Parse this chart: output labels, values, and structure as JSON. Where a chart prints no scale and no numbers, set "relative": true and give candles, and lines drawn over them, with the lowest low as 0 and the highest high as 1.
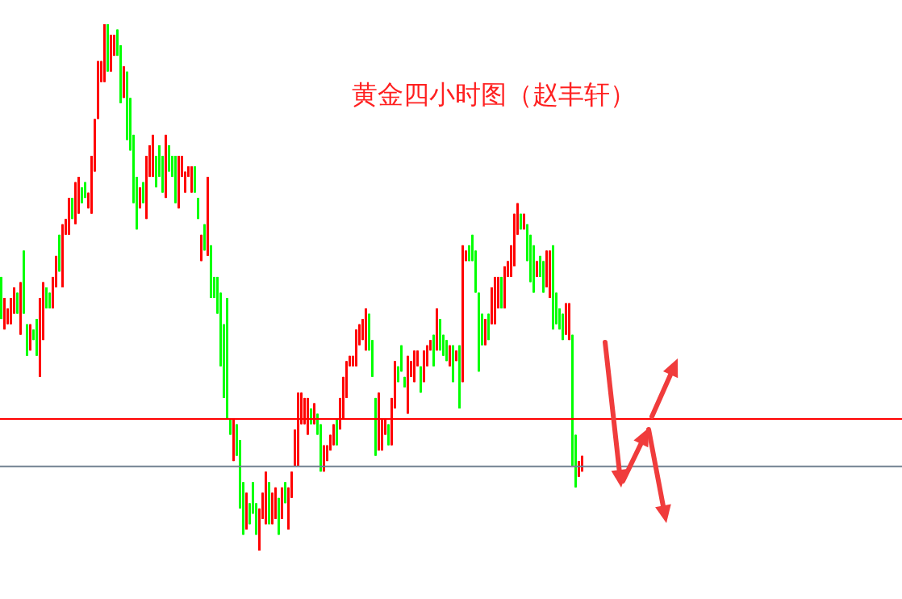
{
  "chart_data": {
    "type": "candlestick",
    "title": "黄金四小时图（赵丰轩）",
    "relative": true,
    "categories": [
      null,
      null,
      null,
      null,
      null,
      null,
      null,
      null,
      null,
      null,
      null,
      null,
      null,
      null,
      null,
      null,
      null,
      null,
      null,
      null,
      null,
      null,
      null,
      null,
      null,
      null,
      null,
      null,
      null,
      null,
      null,
      null,
      null,
      null,
      null,
      null,
      null,
      null,
      null,
      null,
      null,
      null,
      null,
      null,
      null,
      null,
      null,
      null,
      null,
      null,
      null,
      null,
      null,
      null,
      null,
      null,
      null,
      null,
      null,
      null,
      null,
      null,
      null,
      null,
      null,
      null,
      null,
      null,
      null,
      null,
      null,
      null,
      null,
      null,
      null,
      null,
      null,
      null,
      null,
      null,
      null,
      null,
      null,
      null,
      null,
      null,
      null,
      null,
      null,
      null,
      null,
      null,
      null,
      null,
      null,
      null,
      null,
      null,
      null,
      null,
      null,
      null,
      null,
      null,
      null,
      null,
      null,
      null,
      null,
      null,
      null,
      null,
      null,
      null,
      null,
      null,
      null,
      null,
      null,
      null,
      null,
      null,
      null,
      null,
      null,
      null,
      null,
      null,
      null,
      null,
      null,
      null,
      null,
      null,
      null,
      null,
      null,
      null,
      null,
      null,
      null,
      null,
      null,
      null,
      null,
      null,
      null,
      null,
      null,
      null,
      null,
      null,
      null,
      null,
      null,
      null,
      null,
      null,
      null,
      null,
      null,
      null,
      null,
      null,
      null,
      null,
      null,
      null,
      null,
      null,
      null,
      null,
      null,
      null,
      null,
      null,
      null,
      null,
      null,
      null,
      null
    ],
    "ohlc": [
      [
        0.52,
        0.52,
        0.44,
        0.44
      ],
      [
        0.42,
        0.48,
        0.42,
        0.48
      ],
      [
        0.43,
        0.46,
        0.43,
        0.46
      ],
      [
        0.43,
        0.48,
        0.43,
        0.48
      ],
      [
        0.45,
        0.5,
        0.45,
        0.5
      ],
      [
        0.49,
        0.49,
        0.45,
        0.45
      ],
      [
        0.41,
        0.51,
        0.41,
        0.51
      ],
      [
        0.57,
        0.57,
        0.45,
        0.45
      ],
      [
        0.43,
        0.43,
        0.37,
        0.37
      ],
      [
        0.38,
        0.43,
        0.38,
        0.43
      ],
      [
        0.42,
        0.42,
        0.4,
        0.4
      ],
      [
        0.44,
        0.44,
        0.37,
        0.37
      ],
      [
        0.33,
        0.48,
        0.33,
        0.48
      ],
      [
        0.4,
        0.51,
        0.4,
        0.51
      ],
      [
        0.5,
        0.5,
        0.46,
        0.46
      ],
      [
        0.49,
        0.49,
        0.46,
        0.46
      ],
      [
        0.46,
        0.52,
        0.46,
        0.52
      ],
      [
        0.5,
        0.56,
        0.5,
        0.56
      ],
      [
        0.6,
        0.6,
        0.53,
        0.53
      ],
      [
        0.5,
        0.62,
        0.5,
        0.62
      ],
      [
        0.6,
        0.63,
        0.6,
        0.63
      ],
      [
        0.6,
        0.67,
        0.6,
        0.67
      ],
      [
        0.67,
        0.67,
        0.63,
        0.63
      ],
      [
        0.62,
        0.7,
        0.62,
        0.7
      ],
      [
        0.64,
        0.71,
        0.64,
        0.71
      ],
      [
        0.69,
        0.69,
        0.66,
        0.66
      ],
      [
        0.7,
        0.7,
        0.67,
        0.67
      ],
      [
        0.65,
        0.68,
        0.65,
        0.68
      ],
      [
        0.64,
        0.75,
        0.64,
        0.75
      ],
      [
        0.72,
        0.82,
        0.72,
        0.82
      ],
      [
        0.82,
        0.93,
        0.82,
        0.93
      ],
      [
        0.89,
        0.93,
        0.89,
        0.93
      ],
      [
        0.89,
        1,
        0.89,
        1
      ],
      [
        1,
        1,
        0.91,
        0.91
      ],
      [
        0.91,
        0.98,
        0.91,
        0.98
      ],
      [
        0.94,
        0.98,
        0.94,
        0.98
      ],
      [
        0.99,
        0.99,
        0.94,
        0.94
      ],
      [
        0.96,
        0.96,
        0.85,
        0.85
      ],
      [
        0.86,
        0.92,
        0.86,
        0.92
      ],
      [
        0.91,
        0.91,
        0.78,
        0.78
      ],
      [
        0.86,
        0.86,
        0.76,
        0.76
      ],
      [
        0.79,
        0.79,
        0.66,
        0.66
      ],
      [
        0.71,
        0.71,
        0.61,
        0.61
      ],
      [
        0.65,
        0.69,
        0.65,
        0.69
      ],
      [
        0.7,
        0.7,
        0.66,
        0.66
      ],
      [
        0.63,
        0.75,
        0.63,
        0.75
      ],
      [
        0.71,
        0.77,
        0.71,
        0.77
      ],
      [
        0.71,
        0.79,
        0.71,
        0.79
      ],
      [
        0.75,
        0.75,
        0.69,
        0.69
      ],
      [
        0.77,
        0.77,
        0.71,
        0.71
      ],
      [
        0.75,
        0.75,
        0.68,
        0.68
      ],
      [
        0.67,
        0.79,
        0.67,
        0.79
      ],
      [
        0.77,
        0.77,
        0.72,
        0.72
      ],
      [
        0.75,
        0.75,
        0.71,
        0.71
      ],
      [
        0.75,
        0.75,
        0.66,
        0.66
      ],
      [
        0.65,
        0.75,
        0.65,
        0.75
      ],
      [
        0.71,
        0.75,
        0.71,
        0.75
      ],
      [
        0.68,
        0.72,
        0.68,
        0.72
      ],
      [
        0.71,
        0.73,
        0.71,
        0.73
      ],
      [
        0.68,
        0.73,
        0.68,
        0.73
      ],
      [
        0.73,
        0.73,
        0.68,
        0.68
      ],
      [
        0.67,
        0.67,
        0.63,
        0.63
      ],
      [
        0.55,
        0.6,
        0.55,
        0.6
      ],
      [
        0.62,
        0.62,
        0.57,
        0.57
      ],
      [
        0.56,
        0.71,
        0.56,
        0.71
      ],
      [
        0.58,
        0.58,
        0.48,
        0.48
      ],
      [
        0.52,
        0.52,
        0.48,
        0.48
      ],
      [
        0.52,
        0.52,
        0.45,
        0.45
      ],
      [
        0.49,
        0.49,
        0.35,
        0.35
      ],
      [
        0.43,
        0.43,
        0.29,
        0.29
      ],
      [
        0.48,
        0.48,
        0.25,
        0.25
      ],
      [
        0.25,
        0.25,
        0.22,
        0.22
      ],
      [
        0.17,
        0.25,
        0.17,
        0.25
      ],
      [
        0.24,
        0.24,
        0.18,
        0.18
      ],
      [
        0.21,
        0.21,
        0.08,
        0.08
      ],
      [
        0.13,
        0.13,
        0.03,
        0.03
      ],
      [
        0.04,
        0.11,
        0.04,
        0.11
      ],
      [
        0.09,
        0.09,
        0.05,
        0.05
      ],
      [
        0.13,
        0.13,
        0.07,
        0.07
      ],
      [
        0.09,
        0.09,
        0.03,
        0.03
      ],
      [
        0,
        0.08,
        0,
        0.08
      ],
      [
        0.06,
        0.11,
        0.06,
        0.11
      ],
      [
        0.05,
        0.15,
        0.05,
        0.15
      ],
      [
        0.13,
        0.13,
        0.05,
        0.05
      ],
      [
        0.05,
        0.11,
        0.05,
        0.11
      ],
      [
        0.06,
        0.12,
        0.06,
        0.12
      ],
      [
        0.1,
        0.1,
        0.03,
        0.03
      ],
      [
        0.06,
        0.12,
        0.06,
        0.12
      ],
      [
        0.13,
        0.13,
        0.09,
        0.09
      ],
      [
        0.04,
        0.12,
        0.04,
        0.12
      ],
      [
        0.1,
        0.15,
        0.1,
        0.15
      ],
      [
        0.16,
        0.23,
        0.16,
        0.23
      ],
      [
        0.16,
        0.3,
        0.16,
        0.3
      ],
      [
        0.24,
        0.3,
        0.24,
        0.3
      ],
      [
        0.24,
        0.29,
        0.24,
        0.29
      ],
      [
        0.22,
        0.29,
        0.22,
        0.29
      ],
      [
        0.27,
        0.27,
        0.24,
        0.24
      ],
      [
        0.24,
        0.28,
        0.24,
        0.28
      ],
      [
        0.26,
        0.26,
        0.22,
        0.22
      ],
      [
        0.24,
        0.24,
        0.15,
        0.15
      ],
      [
        0.15,
        0.2,
        0.15,
        0.2
      ],
      [
        0.17,
        0.2,
        0.17,
        0.2
      ],
      [
        0.19,
        0.22,
        0.19,
        0.22
      ],
      [
        0.2,
        0.24,
        0.2,
        0.24
      ],
      [
        0.25,
        0.25,
        0.2,
        0.2
      ],
      [
        0.23,
        0.29,
        0.23,
        0.29
      ],
      [
        0.25,
        0.33,
        0.25,
        0.33
      ],
      [
        0.29,
        0.36,
        0.29,
        0.36
      ],
      [
        0.35,
        0.37,
        0.35,
        0.37
      ],
      [
        0.35,
        0.37,
        0.35,
        0.37
      ],
      [
        0.35,
        0.42,
        0.35,
        0.42
      ],
      [
        0.39,
        0.43,
        0.39,
        0.43
      ],
      [
        0.4,
        0.44,
        0.4,
        0.44
      ],
      [
        0.38,
        0.46,
        0.38,
        0.46
      ],
      [
        0.45,
        0.45,
        0.38,
        0.38
      ],
      [
        0.4,
        0.4,
        0.33,
        0.33
      ],
      [
        0.29,
        0.29,
        0.18,
        0.18
      ],
      [
        0.19,
        0.3,
        0.19,
        0.3
      ],
      [
        0.19,
        0.25,
        0.19,
        0.25
      ],
      [
        0.22,
        0.25,
        0.22,
        0.25
      ],
      [
        0.24,
        0.24,
        0.2,
        0.2
      ],
      [
        0.2,
        0.29,
        0.2,
        0.29
      ],
      [
        0.27,
        0.36,
        0.27,
        0.36
      ],
      [
        0.35,
        0.35,
        0.32,
        0.32
      ],
      [
        0.39,
        0.39,
        0.34,
        0.34
      ],
      [
        0.33,
        0.33,
        0.31,
        0.31
      ],
      [
        0.26,
        0.37,
        0.26,
        0.37
      ],
      [
        0.33,
        0.36,
        0.33,
        0.36
      ],
      [
        0.32,
        0.38,
        0.32,
        0.38
      ],
      [
        0.35,
        0.38,
        0.35,
        0.38
      ],
      [
        0.35,
        0.35,
        0.3,
        0.3
      ],
      [
        0.32,
        0.38,
        0.32,
        0.38
      ],
      [
        0.35,
        0.39,
        0.35,
        0.39
      ],
      [
        0.38,
        0.4,
        0.38,
        0.4
      ],
      [
        0.41,
        0.41,
        0.35,
        0.35
      ],
      [
        0.38,
        0.46,
        0.38,
        0.46
      ],
      [
        0.44,
        0.44,
        0.38,
        0.38
      ],
      [
        0.41,
        0.41,
        0.37,
        0.37
      ],
      [
        0.4,
        0.4,
        0.36,
        0.36
      ],
      [
        0.35,
        0.39,
        0.35,
        0.39
      ],
      [
        0.39,
        0.39,
        0.32,
        0.32
      ],
      [
        0.36,
        0.38,
        0.36,
        0.38
      ],
      [
        0.39,
        0.39,
        0.27,
        0.27
      ],
      [
        0.32,
        0.58,
        0.32,
        0.58
      ],
      [
        0.55,
        0.57,
        0.55,
        0.57
      ],
      [
        0.58,
        0.58,
        0.55,
        0.55
      ],
      [
        0.6,
        0.6,
        0.55,
        0.55
      ],
      [
        0.57,
        0.57,
        0.49,
        0.49
      ],
      [
        0.49,
        0.49,
        0.34,
        0.34
      ],
      [
        0.45,
        0.45,
        0.39,
        0.39
      ],
      [
        0.39,
        0.44,
        0.39,
        0.44
      ],
      [
        0.45,
        0.45,
        0.4,
        0.4
      ],
      [
        0.43,
        0.5,
        0.43,
        0.5
      ],
      [
        0.43,
        0.52,
        0.43,
        0.52
      ],
      [
        0.46,
        0.52,
        0.46,
        0.52
      ],
      [
        0.52,
        0.52,
        0.46,
        0.46
      ],
      [
        0.46,
        0.54,
        0.46,
        0.54
      ],
      [
        0.52,
        0.55,
        0.52,
        0.55
      ],
      [
        0.52,
        0.58,
        0.52,
        0.58
      ],
      [
        0.54,
        0.64,
        0.54,
        0.64
      ],
      [
        0.6,
        0.66,
        0.6,
        0.66
      ],
      [
        0.64,
        0.64,
        0.61,
        0.61
      ],
      [
        0.61,
        0.64,
        0.61,
        0.64
      ],
      [
        0.62,
        0.62,
        0.55,
        0.55
      ],
      [
        0.6,
        0.6,
        0.51,
        0.51
      ],
      [
        0.58,
        0.58,
        0.49,
        0.49
      ],
      [
        0.52,
        0.55,
        0.52,
        0.55
      ],
      [
        0.56,
        0.56,
        0.52,
        0.52
      ],
      [
        0.55,
        0.55,
        0.49,
        0.49
      ],
      [
        0.5,
        0.57,
        0.5,
        0.57
      ],
      [
        0.48,
        0.57,
        0.48,
        0.57
      ],
      [
        0.58,
        0.58,
        0.42,
        0.42
      ],
      [
        0.49,
        0.49,
        0.43,
        0.43
      ],
      [
        0.46,
        0.46,
        0.42,
        0.42
      ],
      [
        0.45,
        0.45,
        0.4,
        0.4
      ],
      [
        0.41,
        0.47,
        0.41,
        0.47
      ],
      [
        0.4,
        0.47,
        0.4,
        0.47
      ],
      [
        0.41,
        0.41,
        0.16,
        0.16
      ],
      [
        0.22,
        0.22,
        0.12,
        0.12
      ],
      [
        0.14,
        0.17,
        0.14,
        0.17
      ],
      [
        0.15,
        0.18,
        0.15,
        0.18
      ]
    ],
    "colors": [
      "#00ff00",
      "#ff0000",
      "#ff0000",
      "#ff0000",
      "#ff0000",
      "#00ff00",
      "#ff0000",
      "#00ff00",
      "#00ff00",
      "#ff0000",
      "#00ff00",
      "#00ff00",
      "#ff0000",
      "#ff0000",
      "#00ff00",
      "#00ff00",
      "#ff0000",
      "#ff0000",
      "#00ff00",
      "#ff0000",
      "#ff0000",
      "#ff0000",
      "#00ff00",
      "#ff0000",
      "#ff0000",
      "#00ff00",
      "#00ff00",
      "#ff0000",
      "#ff0000",
      "#ff0000",
      "#ff0000",
      "#ff0000",
      "#ff0000",
      "#00ff00",
      "#ff0000",
      "#ff0000",
      "#00ff00",
      "#00ff00",
      "#ff0000",
      "#00ff00",
      "#00ff00",
      "#00ff00",
      "#00ff00",
      "#ff0000",
      "#00ff00",
      "#ff0000",
      "#ff0000",
      "#ff0000",
      "#00ff00",
      "#00ff00",
      "#00ff00",
      "#ff0000",
      "#00ff00",
      "#00ff00",
      "#00ff00",
      "#ff0000",
      "#ff0000",
      "#ff0000",
      "#ff0000",
      "#ff0000",
      "#00ff00",
      "#00ff00",
      "#ff0000",
      "#00ff00",
      "#ff0000",
      "#00ff00",
      "#00ff00",
      "#00ff00",
      "#00ff00",
      "#00ff00",
      "#00ff00",
      "#00ff00",
      "#ff0000",
      "#00ff00",
      "#00ff00",
      "#00ff00",
      "#ff0000",
      "#00ff00",
      "#00ff00",
      "#00ff00",
      "#ff0000",
      "#ff0000",
      "#ff0000",
      "#00ff00",
      "#ff0000",
      "#ff0000",
      "#00ff00",
      "#ff0000",
      "#00ff00",
      "#ff0000",
      "#ff0000",
      "#ff0000",
      "#ff0000",
      "#ff0000",
      "#ff0000",
      "#ff0000",
      "#00ff00",
      "#ff0000",
      "#00ff00",
      "#00ff00",
      "#ff0000",
      "#ff0000",
      "#ff0000",
      "#ff0000",
      "#00ff00",
      "#ff0000",
      "#ff0000",
      "#ff0000",
      "#ff0000",
      "#ff0000",
      "#ff0000",
      "#ff0000",
      "#ff0000",
      "#ff0000",
      "#00ff00",
      "#00ff00",
      "#00ff00",
      "#ff0000",
      "#ff0000",
      "#ff0000",
      "#00ff00",
      "#ff0000",
      "#ff0000",
      "#00ff00",
      "#00ff00",
      "#00ff00",
      "#ff0000",
      "#ff0000",
      "#ff0000",
      "#ff0000",
      "#00ff00",
      "#ff0000",
      "#ff0000",
      "#ff0000",
      "#00ff00",
      "#ff0000",
      "#00ff00",
      "#00ff00",
      "#00ff00",
      "#ff0000",
      "#00ff00",
      "#ff0000",
      "#00ff00",
      "#ff0000",
      "#ff0000",
      "#00ff00",
      "#00ff00",
      "#00ff00",
      "#00ff00",
      "#00ff00",
      "#ff0000",
      "#00ff00",
      "#ff0000",
      "#ff0000",
      "#ff0000",
      "#00ff00",
      "#ff0000",
      "#ff0000",
      "#ff0000",
      "#ff0000",
      "#ff0000",
      "#00ff00",
      "#ff0000",
      "#00ff00",
      "#00ff00",
      "#00ff00",
      "#ff0000",
      "#00ff00",
      "#00ff00",
      "#ff0000",
      "#ff0000",
      "#00ff00",
      "#00ff00",
      "#00ff00",
      "#00ff00",
      "#ff0000",
      "#ff0000",
      "#00ff00",
      "#00ff00",
      "#ff0000",
      "#ff0000"
    ],
    "ref_lines": [
      {
        "axis": "y",
        "value": 0.25,
        "color": "#ff0000"
      },
      {
        "axis": "y",
        "value": 0.16,
        "color": "#708090"
      }
    ]
  }
}
